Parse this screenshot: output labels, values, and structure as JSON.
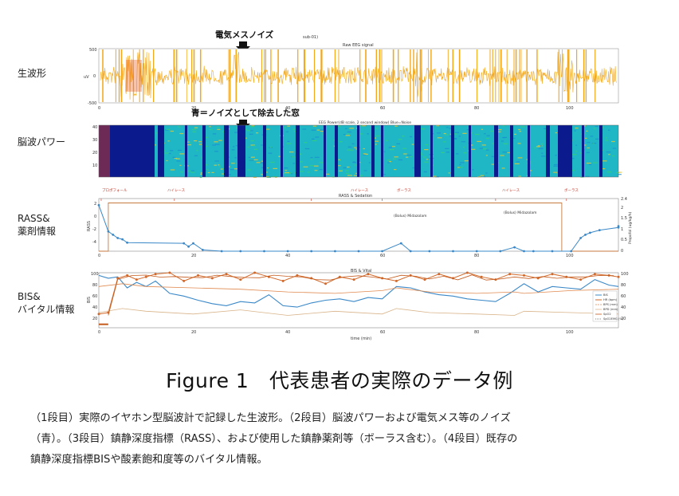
{
  "figure": {
    "row_labels": {
      "raw": "生波形",
      "power": "脳波パワー",
      "rass_line1": "RASS&",
      "rass_line2": "薬剤情報",
      "bis_line1": "BIS&",
      "bis_line2": "バイタル情報"
    },
    "annotations": {
      "electrosurgical_noise": "電気メスノイズ",
      "blue_removed": "青＝ノイズとして除去した窓"
    },
    "panel1": {
      "id_label": "sub-01)",
      "title": "Raw EEG signal",
      "ylabel": "uV",
      "yticks": [
        "500",
        "0",
        "-500"
      ],
      "xticks": [
        "0",
        "20",
        "40",
        "60",
        "80",
        "100"
      ]
    },
    "panel2": {
      "title": "EEG Power(dB scale, 2 second window) Blue=Noise",
      "yticks": [
        "40",
        "30",
        "20",
        "10"
      ]
    },
    "panel3": {
      "title": "RASS & Sedation",
      "ylabel": "RASS",
      "y2label": "Propofol (ug/kg/h)",
      "yticks": [
        "2",
        "0",
        "-2",
        "-4"
      ],
      "y2ticks": [
        "2.4",
        "2",
        "1.5",
        "1",
        "0.5",
        "0"
      ],
      "xticks": [
        "0",
        "20",
        "40",
        "60",
        "80",
        "100"
      ],
      "events": [
        "プロポフォール",
        "ハイレース",
        "ハイレース",
        "ボーラス",
        "ハイレース",
        "ボーラス"
      ],
      "notes": [
        "(Bolus) Midazolam",
        "(Bolus) Midazolam"
      ]
    },
    "panel4": {
      "title": "BIS & Vital",
      "ylabel": "BIS",
      "yticks": [
        "100",
        "80",
        "60",
        "40",
        "20"
      ],
      "y2ticks": [
        "100",
        "80",
        "60",
        "40",
        "20"
      ],
      "xticks": [
        "0",
        "20",
        "40",
        "60",
        "80",
        "100"
      ],
      "xlabel": "time (min)",
      "legend": [
        "BIS",
        "HR (bpm)",
        "BPS (mm)",
        "BPD (mm)",
        "SpO2",
        "SpO2EMG (%)"
      ]
    },
    "colors": {
      "raw_signal": "#f2a81a",
      "bis_blue": "#3a88c8",
      "bis_orange": "#d2692a",
      "noise_blue": "#0b1a8c",
      "power_cyan": "#1fb7c6"
    }
  },
  "chart_data": [
    {
      "type": "line",
      "title": "RASS & Sedation",
      "ylabel": "RASS",
      "ylim": [
        -5,
        3
      ],
      "xlim": [
        0,
        110
      ],
      "series": [
        {
          "name": "RASS",
          "x": [
            0,
            2,
            3,
            4,
            5,
            6,
            18,
            19,
            20,
            22,
            26,
            30,
            35,
            40,
            45,
            50,
            55,
            60,
            64,
            66,
            70,
            75,
            80,
            85,
            88,
            90,
            92,
            96,
            100,
            102,
            103,
            104,
            106,
            110,
            112
          ],
          "y": [
            2,
            -2,
            -2.5,
            -3,
            -3.2,
            -3.7,
            -3.8,
            -4.3,
            -3.8,
            -4.8,
            -5,
            -5,
            -5,
            -5,
            -5,
            -5,
            -5,
            -5,
            -3.8,
            -5,
            -5,
            -5,
            -5,
            -5,
            -4.4,
            -5,
            -5,
            -5,
            -5,
            -3,
            -2.5,
            -2.2,
            -1.8,
            -1.4,
            -1.2
          ]
        },
        {
          "name": "Propofol (ug/kg/h)",
          "x": [
            0,
            2,
            2,
            98,
            98,
            110
          ],
          "y": [
            0,
            0,
            2.2,
            2.2,
            0,
            0
          ]
        }
      ]
    },
    {
      "type": "line",
      "title": "BIS & Vital",
      "xlabel": "time (min)",
      "ylabel": "BIS",
      "ylim": [
        20,
        100
      ],
      "xlim": [
        0,
        110
      ],
      "series": [
        {
          "name": "BIS",
          "x": [
            0,
            2,
            4,
            6,
            8,
            10,
            12,
            15,
            18,
            21,
            24,
            27,
            30,
            33,
            36,
            39,
            42,
            45,
            48,
            51,
            54,
            57,
            60,
            63,
            66,
            69,
            72,
            75,
            78,
            81,
            84,
            87,
            90,
            93,
            96,
            99,
            102,
            105,
            108,
            110
          ],
          "y": [
            96,
            92,
            94,
            78,
            86,
            80,
            88,
            70,
            66,
            60,
            55,
            52,
            58,
            56,
            68,
            52,
            50,
            56,
            60,
            62,
            58,
            64,
            62,
            80,
            78,
            72,
            68,
            66,
            62,
            60,
            58,
            70,
            84,
            72,
            80,
            78,
            76,
            90,
            82,
            80
          ]
        },
        {
          "name": "HR (bpm)",
          "x": [
            0,
            2,
            4,
            6,
            8,
            10,
            12,
            15,
            18,
            21,
            24,
            27,
            30,
            33,
            36,
            39,
            42,
            45,
            48,
            51,
            54,
            57,
            60,
            63,
            66,
            69,
            72,
            75,
            78,
            81,
            84,
            87,
            90,
            93,
            96,
            99,
            102,
            105,
            108,
            110
          ],
          "y": [
            40,
            42,
            92,
            96,
            90,
            94,
            98,
            100,
            88,
            96,
            92,
            98,
            90,
            100,
            94,
            88,
            96,
            92,
            84,
            94,
            90,
            98,
            92,
            88,
            96,
            90,
            98,
            92,
            100,
            94,
            90,
            98,
            96,
            92,
            98,
            94,
            90,
            98,
            96,
            94
          ]
        },
        {
          "name": "BPS (mm)",
          "x": [
            0,
            5,
            10,
            20,
            30,
            40,
            50,
            60,
            63,
            70,
            80,
            88,
            90,
            100,
            110
          ],
          "y": [
            80,
            84,
            80,
            78,
            76,
            72,
            70,
            74,
            78,
            72,
            70,
            72,
            70,
            74,
            76
          ]
        },
        {
          "name": "BPD (mm)",
          "x": [
            0,
            5,
            10,
            20,
            30,
            40,
            50,
            60,
            63,
            70,
            80,
            88,
            90,
            100,
            110
          ],
          "y": [
            42,
            48,
            44,
            40,
            46,
            38,
            44,
            40,
            48,
            42,
            40,
            38,
            44,
            42,
            40
          ]
        }
      ]
    }
  ],
  "caption": {
    "title": "Figure 1　代表患者の実際のデータ例",
    "lines": [
      "（1段目）実際のイヤホン型脳波計で記録した生波形。（2段目）脳波パワーおよび電気メス等のノイズ",
      "（青）。（3段目）鎮静深度指標（RASS）、および使用した鎮静薬剤等（ボーラス含む）。（4段目）既存の",
      "鎮静深度指標BISや酸素飽和度等のバイタル情報。"
    ]
  }
}
